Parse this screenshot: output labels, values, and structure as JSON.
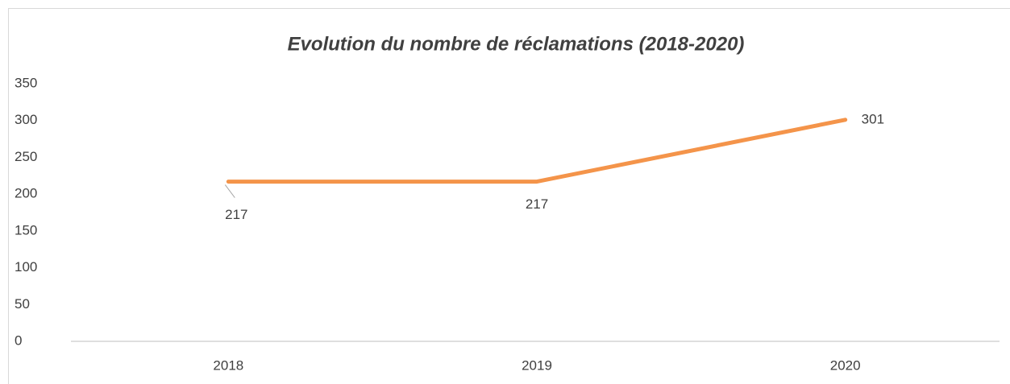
{
  "chart_data": {
    "type": "line",
    "title": "Evolution du nombre de réclamations (2018-2020)",
    "categories": [
      "2018",
      "2019",
      "2020"
    ],
    "values": [
      217,
      217,
      301
    ],
    "color": "#f4944a",
    "ylim": [
      0,
      350
    ],
    "yticks": [
      0,
      50,
      100,
      150,
      200,
      250,
      300,
      350
    ],
    "grid": false,
    "data_labels": true
  }
}
